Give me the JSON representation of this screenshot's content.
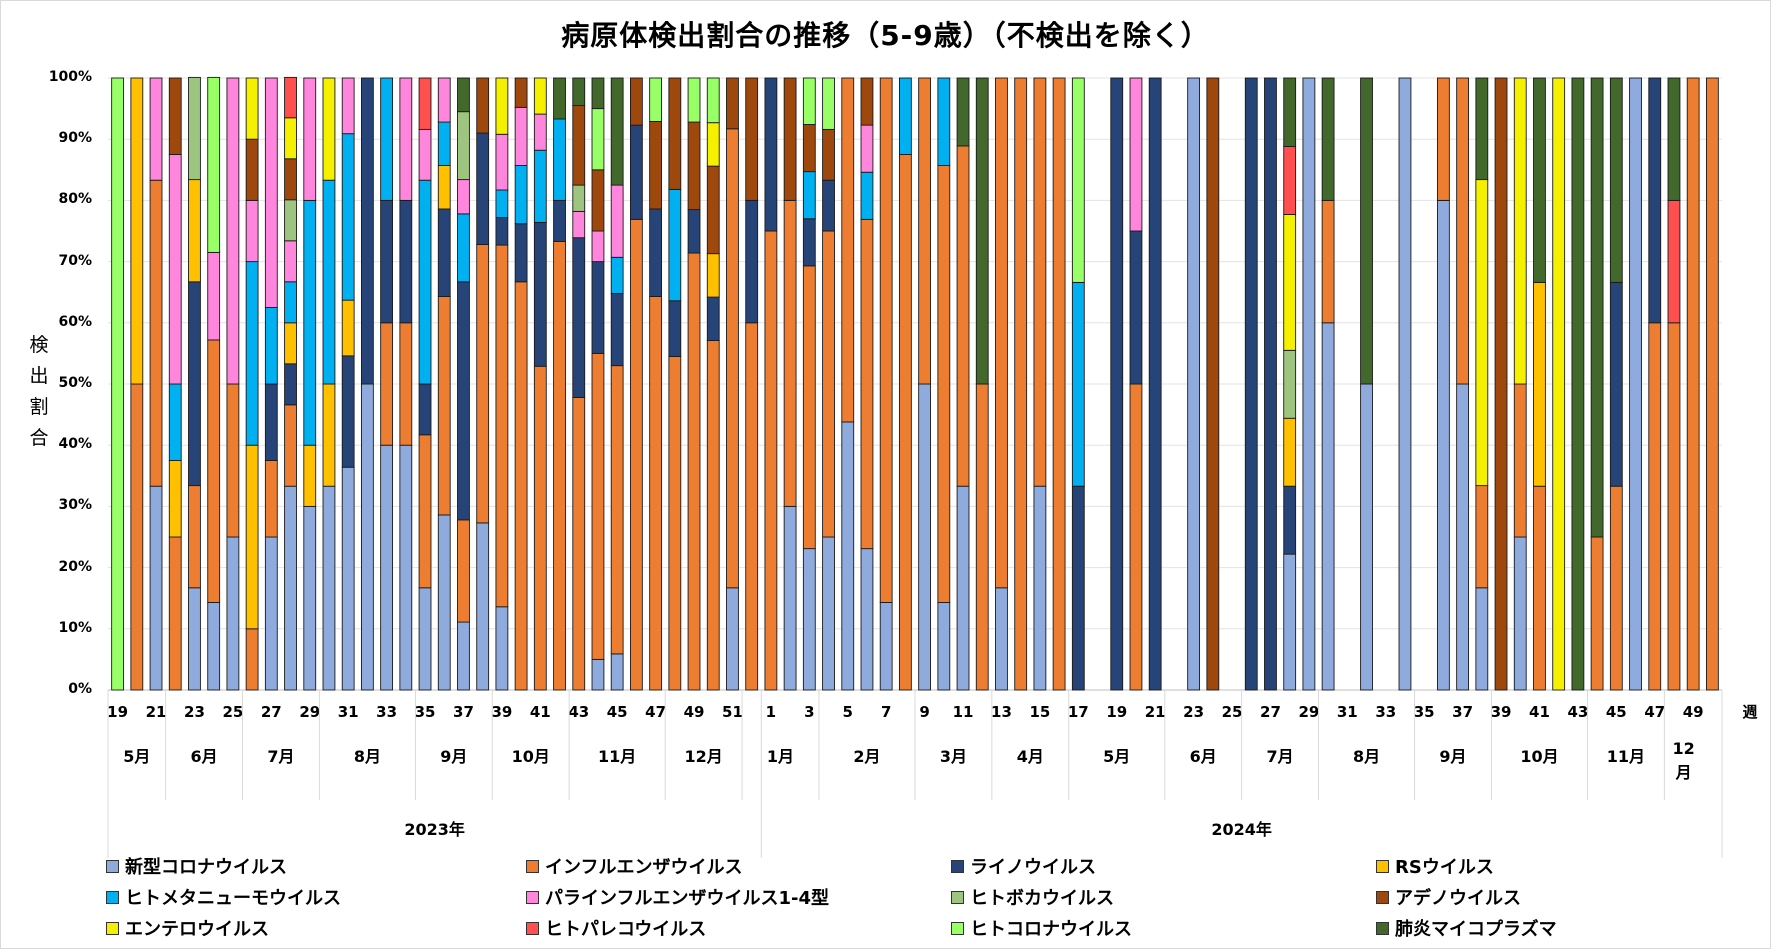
{
  "chart_data": {
    "type": "bar",
    "stacked": true,
    "title": "病原体検出割合の推移（5-9歳）（不検出を除く）",
    "ylabel": "検出割合",
    "xlabel": "週",
    "ylim": [
      0,
      100
    ],
    "yticks": [
      "0%",
      "10%",
      "20%",
      "30%",
      "40%",
      "50%",
      "60%",
      "70%",
      "80%",
      "90%",
      "100%"
    ],
    "grid": true,
    "legend_position": "bottom",
    "series_names": [
      "新型コロナウイルス",
      "インフルエンザウイルス",
      "ライノウイルス",
      "RSウイルス",
      "ヒトメタニューモウイルス",
      "パラインフルエンザウイルス1-4型",
      "ヒトボカウイルス",
      "アデノウイルス",
      "エンテロウイルス",
      "ヒトパレコウイルス",
      "ヒトコロナウイルス",
      "肺炎マイコプラズマ"
    ],
    "series_colors": [
      "#8faadc",
      "#ed7d31",
      "#264478",
      "#ffc000",
      "#00b0f0",
      "#ff85dd",
      "#9dc580",
      "#9e480e",
      "#f5ef00",
      "#ff4f4f",
      "#99ff66",
      "#43682b"
    ],
    "years": [
      {
        "label": "2023年",
        "weeks_from": 19,
        "weeks_to": 52
      },
      {
        "label": "2024年",
        "weeks_from": 1,
        "weeks_to": 50
      }
    ],
    "months": [
      {
        "label": "5月",
        "start": 0,
        "count": 3
      },
      {
        "label": "6月",
        "start": 3,
        "count": 4
      },
      {
        "label": "7月",
        "start": 7,
        "count": 4
      },
      {
        "label": "8月",
        "start": 11,
        "count": 5
      },
      {
        "label": "9月",
        "start": 16,
        "count": 4
      },
      {
        "label": "10月",
        "start": 20,
        "count": 4
      },
      {
        "label": "11月",
        "start": 24,
        "count": 5
      },
      {
        "label": "12月",
        "start": 29,
        "count": 4
      },
      {
        "label": "1月",
        "start": 33,
        "count": 4
      },
      {
        "label": "2月",
        "start": 37,
        "count": 5
      },
      {
        "label": "3月",
        "start": 42,
        "count": 4
      },
      {
        "label": "4月",
        "start": 46,
        "count": 4
      },
      {
        "label": "5月",
        "start": 50,
        "count": 5
      },
      {
        "label": "6月",
        "start": 55,
        "count": 4
      },
      {
        "label": "7月",
        "start": 59,
        "count": 4
      },
      {
        "label": "8月",
        "start": 63,
        "count": 5
      },
      {
        "label": "9月",
        "start": 68,
        "count": 4
      },
      {
        "label": "10月",
        "start": 72,
        "count": 5
      },
      {
        "label": "11月",
        "start": 77,
        "count": 4
      },
      {
        "label": "12月",
        "start": 81,
        "count": 2
      }
    ],
    "week_tick_labels": [
      "19",
      "21",
      "23",
      "25",
      "27",
      "29",
      "31",
      "33",
      "35",
      "37",
      "39",
      "41",
      "43",
      "45",
      "47",
      "49",
      "51",
      "1",
      "3",
      "5",
      "7",
      "9",
      "11",
      "13",
      "15",
      "17",
      "19",
      "21",
      "23",
      "25",
      "27",
      "29",
      "31",
      "33",
      "35",
      "37",
      "39",
      "41",
      "43",
      "45",
      "47",
      "49"
    ],
    "categories": [
      "2023-19",
      "2023-20",
      "2023-21",
      "2023-22",
      "2023-23",
      "2023-24",
      "2023-25",
      "2023-26",
      "2023-27",
      "2023-28",
      "2023-29",
      "2023-30",
      "2023-31",
      "2023-32",
      "2023-33",
      "2023-34",
      "2023-35",
      "2023-36",
      "2023-37",
      "2023-38",
      "2023-39",
      "2023-40",
      "2023-41",
      "2023-42",
      "2023-43",
      "2023-44",
      "2023-45",
      "2023-46",
      "2023-47",
      "2023-48",
      "2023-49",
      "2023-50",
      "2023-51",
      "2023-52",
      "2024-1",
      "2024-2",
      "2024-3",
      "2024-4",
      "2024-5",
      "2024-6",
      "2024-7",
      "2024-8",
      "2024-9",
      "2024-10",
      "2024-11",
      "2024-12",
      "2024-13",
      "2024-14",
      "2024-15",
      "2024-16",
      "2024-17",
      "2024-18",
      "2024-19",
      "2024-20",
      "2024-21",
      "2024-22",
      "2024-23",
      "2024-24",
      "2024-25",
      "2024-26",
      "2024-27",
      "2024-28",
      "2024-29",
      "2024-30",
      "2024-31",
      "2024-32",
      "2024-33",
      "2024-34",
      "2024-35",
      "2024-36",
      "2024-37",
      "2024-38",
      "2024-39",
      "2024-40",
      "2024-41",
      "2024-42",
      "2024-43",
      "2024-44",
      "2024-45",
      "2024-46",
      "2024-47",
      "2024-48",
      "2024-49",
      "2024-50"
    ],
    "bars": [
      [
        0,
        0,
        0,
        0,
        0,
        0,
        0,
        0,
        0,
        0,
        100,
        0
      ],
      [
        0,
        50,
        0,
        50,
        0,
        0,
        0,
        0,
        0,
        0,
        0,
        0
      ],
      [
        33.3,
        50,
        0,
        0,
        0,
        16.7,
        0,
        0,
        0,
        0,
        0,
        0
      ],
      [
        0,
        25,
        0,
        12.5,
        12.5,
        37.5,
        0,
        12.5,
        0,
        0,
        0,
        0
      ],
      [
        16.7,
        16.7,
        33.3,
        16.7,
        0,
        0,
        16.7,
        0,
        0,
        0,
        0,
        0
      ],
      [
        14.3,
        42.9,
        0,
        0,
        0,
        14.3,
        0,
        0,
        0,
        0,
        28.6,
        0
      ],
      [
        25,
        25,
        0,
        0,
        0,
        50,
        0,
        0,
        0,
        0,
        0,
        0
      ],
      [
        0,
        10,
        0,
        30,
        30,
        10,
        0,
        10,
        10,
        0,
        0,
        0
      ],
      [
        25,
        12.5,
        12.5,
        0,
        12.5,
        37.5,
        0,
        0,
        0,
        0,
        0,
        0
      ],
      [
        33.3,
        13.3,
        6.7,
        6.7,
        6.7,
        6.7,
        6.7,
        6.7,
        6.7,
        6.6,
        0,
        0
      ],
      [
        30,
        0,
        0,
        10,
        40,
        20,
        0,
        0,
        0,
        0,
        0,
        0
      ],
      [
        33.3,
        0,
        0,
        16.7,
        33.3,
        0,
        0,
        0,
        16.7,
        0,
        0,
        0
      ],
      [
        36.4,
        0,
        18.2,
        9.1,
        27.2,
        9.1,
        0,
        0,
        0,
        0,
        0,
        0
      ],
      [
        50,
        0,
        50,
        0,
        0,
        0,
        0,
        0,
        0,
        0,
        0,
        0
      ],
      [
        40,
        20,
        20,
        0,
        20,
        0,
        0,
        0,
        0,
        0,
        0,
        0
      ],
      [
        40,
        20,
        20,
        0,
        0,
        20,
        0,
        0,
        0,
        0,
        0,
        0
      ],
      [
        16.7,
        25,
        8.3,
        0,
        33.3,
        8.3,
        0,
        0,
        0,
        8.4,
        0,
        0
      ],
      [
        28.6,
        35.7,
        14.3,
        7.1,
        7.1,
        7.2,
        0,
        0,
        0,
        0,
        0,
        0
      ],
      [
        11.1,
        16.7,
        38.9,
        0,
        11.1,
        5.6,
        11.1,
        0,
        0,
        0,
        0,
        5.5
      ],
      [
        27.3,
        45.5,
        18.2,
        0,
        0,
        0,
        0,
        9,
        0,
        0,
        0,
        0
      ],
      [
        13.6,
        59.1,
        4.5,
        0,
        4.5,
        9.1,
        0,
        0,
        9.2,
        0,
        0,
        0
      ],
      [
        0,
        66.7,
        9.5,
        0,
        9.5,
        9.5,
        0,
        4.8,
        0,
        0,
        0,
        0
      ],
      [
        0,
        52.9,
        23.5,
        0,
        11.8,
        5.9,
        0,
        0,
        5.9,
        0,
        0,
        0
      ],
      [
        0,
        73.3,
        6.7,
        0,
        13.3,
        0,
        0,
        0,
        0,
        0,
        0,
        6.7
      ],
      [
        0,
        47.8,
        26.1,
        0,
        0,
        4.3,
        4.3,
        13,
        0,
        0,
        0,
        4.5
      ],
      [
        5,
        50,
        15,
        0,
        0,
        5,
        0,
        10,
        0,
        0,
        10,
        5
      ],
      [
        5.9,
        47.1,
        11.8,
        0,
        5.9,
        11.8,
        0,
        0,
        0,
        0,
        0,
        17.5
      ],
      [
        0,
        76.9,
        15.4,
        0,
        0,
        0,
        0,
        7.7,
        0,
        0,
        0,
        0
      ],
      [
        0,
        64.3,
        14.3,
        0,
        0,
        0,
        0,
        14.3,
        0,
        0,
        7.1,
        0
      ],
      [
        0,
        54.5,
        9.1,
        0,
        18.2,
        0,
        0,
        18.2,
        0,
        0,
        0,
        0
      ],
      [
        0,
        71.4,
        7.1,
        0,
        0,
        0,
        0,
        14.3,
        0,
        0,
        7.2,
        0
      ],
      [
        0,
        57.1,
        7.1,
        7.1,
        0,
        0,
        0,
        14.3,
        7.1,
        0,
        7.3,
        0
      ],
      [
        16.7,
        75,
        0,
        0,
        0,
        0,
        0,
        8.3,
        0,
        0,
        0,
        0
      ],
      [
        0,
        60,
        20,
        0,
        0,
        0,
        0,
        20,
        0,
        0,
        0,
        0
      ],
      [
        0,
        75,
        25,
        0,
        0,
        0,
        0,
        0,
        0,
        0,
        0,
        0
      ],
      [
        30,
        50,
        0,
        0,
        0,
        0,
        0,
        20,
        0,
        0,
        0,
        0
      ],
      [
        23.1,
        46.2,
        7.7,
        0,
        7.7,
        0,
        0,
        7.7,
        0,
        0,
        7.6,
        0
      ],
      [
        25,
        50,
        8.3,
        0,
        0,
        0,
        0,
        8.3,
        0,
        0,
        8.4,
        0
      ],
      [
        43.8,
        56.2,
        0,
        0,
        0,
        0,
        0,
        0,
        0,
        0,
        0,
        0
      ],
      [
        23.1,
        53.8,
        0,
        0,
        7.7,
        7.7,
        0,
        7.7,
        0,
        0,
        0,
        0
      ],
      [
        14.3,
        85.7,
        0,
        0,
        0,
        0,
        0,
        0,
        0,
        0,
        0,
        0
      ],
      [
        0,
        87.5,
        0,
        0,
        12.5,
        0,
        0,
        0,
        0,
        0,
        0,
        0
      ],
      [
        50,
        50,
        0,
        0,
        0,
        0,
        0,
        0,
        0,
        0,
        0,
        0
      ],
      [
        14.3,
        71.4,
        0,
        0,
        14.3,
        0,
        0,
        0,
        0,
        0,
        0,
        0
      ],
      [
        33.3,
        55.6,
        0,
        0,
        0,
        0,
        0,
        0,
        0,
        0,
        0,
        11.1
      ],
      [
        0,
        50,
        0,
        0,
        0,
        0,
        0,
        0,
        0,
        0,
        0,
        50
      ],
      [
        16.7,
        83.3,
        0,
        0,
        0,
        0,
        0,
        0,
        0,
        0,
        0,
        0
      ],
      [
        0,
        100,
        0,
        0,
        0,
        0,
        0,
        0,
        0,
        0,
        0,
        0
      ],
      [
        33.3,
        66.7,
        0,
        0,
        0,
        0,
        0,
        0,
        0,
        0,
        0,
        0
      ],
      [
        0,
        100,
        0,
        0,
        0,
        0,
        0,
        0,
        0,
        0,
        0,
        0
      ],
      [
        0,
        0,
        33.3,
        0,
        33.3,
        0,
        0,
        0,
        0,
        0,
        33.4,
        0
      ],
      [
        0,
        0,
        0,
        0,
        0,
        0,
        0,
        0,
        0,
        0,
        0,
        0
      ],
      [
        0,
        0,
        100,
        0,
        0,
        0,
        0,
        0,
        0,
        0,
        0,
        0
      ],
      [
        0,
        50,
        25,
        0,
        0,
        25,
        0,
        0,
        0,
        0,
        0,
        0
      ],
      [
        0,
        0,
        100,
        0,
        0,
        0,
        0,
        0,
        0,
        0,
        0,
        0
      ],
      [
        0,
        0,
        0,
        0,
        0,
        0,
        0,
        0,
        0,
        0,
        0,
        0
      ],
      [
        100,
        0,
        0,
        0,
        0,
        0,
        0,
        0,
        0,
        0,
        0,
        0
      ],
      [
        0,
        0,
        0,
        0,
        0,
        0,
        0,
        100,
        0,
        0,
        0,
        0
      ],
      [
        0,
        0,
        0,
        0,
        0,
        0,
        0,
        0,
        0,
        0,
        0,
        0
      ],
      [
        0,
        0,
        100,
        0,
        0,
        0,
        0,
        0,
        0,
        0,
        0,
        0
      ],
      [
        0,
        0,
        100,
        0,
        0,
        0,
        0,
        0,
        0,
        0,
        0,
        0
      ],
      [
        22.2,
        0,
        11.1,
        11.1,
        0,
        0,
        11.1,
        0,
        22.2,
        11.1,
        0,
        11.2
      ],
      [
        100,
        0,
        0,
        0,
        0,
        0,
        0,
        0,
        0,
        0,
        0,
        0
      ],
      [
        60,
        20,
        0,
        0,
        0,
        0,
        0,
        0,
        0,
        0,
        0,
        20
      ],
      [
        0,
        0,
        0,
        0,
        0,
        0,
        0,
        0,
        0,
        0,
        0,
        0
      ],
      [
        50,
        0,
        0,
        0,
        0,
        0,
        0,
        0,
        0,
        0,
        0,
        50
      ],
      [
        0,
        0,
        0,
        0,
        0,
        0,
        0,
        0,
        0,
        0,
        0,
        0
      ],
      [
        100,
        0,
        0,
        0,
        0,
        0,
        0,
        0,
        0,
        0,
        0,
        0
      ],
      [
        0,
        0,
        0,
        0,
        0,
        0,
        0,
        0,
        0,
        0,
        0,
        0
      ],
      [
        80,
        20,
        0,
        0,
        0,
        0,
        0,
        0,
        0,
        0,
        0,
        0
      ],
      [
        50,
        50,
        0,
        0,
        0,
        0,
        0,
        0,
        0,
        0,
        0,
        0
      ],
      [
        16.7,
        16.7,
        0,
        0,
        0,
        0,
        0,
        0,
        50,
        0,
        0,
        16.6
      ],
      [
        0,
        0,
        0,
        0,
        0,
        0,
        0,
        100,
        0,
        0,
        0,
        0
      ],
      [
        25,
        25,
        0,
        0,
        0,
        0,
        0,
        0,
        50,
        0,
        0,
        0
      ],
      [
        0,
        33.3,
        0,
        33.3,
        0,
        0,
        0,
        0,
        0,
        0,
        0,
        33.4
      ],
      [
        0,
        0,
        0,
        0,
        0,
        0,
        0,
        0,
        100,
        0,
        0,
        0
      ],
      [
        0,
        0,
        0,
        0,
        0,
        0,
        0,
        0,
        0,
        0,
        0,
        100
      ],
      [
        0,
        25,
        0,
        0,
        0,
        0,
        0,
        0,
        0,
        0,
        0,
        75
      ],
      [
        0,
        33.3,
        33.3,
        0,
        0,
        0,
        0,
        0,
        0,
        0,
        0,
        33.4
      ],
      [
        100,
        0,
        0,
        0,
        0,
        0,
        0,
        0,
        0,
        0,
        0,
        0
      ],
      [
        0,
        60,
        40,
        0,
        0,
        0,
        0,
        0,
        0,
        0,
        0,
        0
      ],
      [
        0,
        60,
        0,
        0,
        0,
        0,
        0,
        0,
        0,
        20,
        0,
        20
      ],
      [
        0,
        100,
        0,
        0,
        0,
        0,
        0,
        0,
        0,
        0,
        0,
        0
      ],
      [
        0,
        100,
        0,
        0,
        0,
        0,
        0,
        0,
        0,
        0,
        0,
        0
      ]
    ]
  }
}
